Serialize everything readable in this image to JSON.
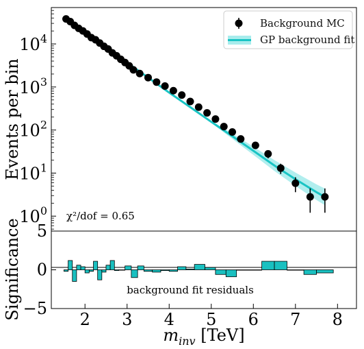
{
  "chart_data": [
    {
      "type": "scatter",
      "panel": "main",
      "ylabel": "Events per bin",
      "yscale": "log",
      "ylim": [
        0.45,
        70000
      ],
      "xlim": [
        1.2,
        8.45
      ],
      "ytick_labels": [
        "10^0",
        "10^1",
        "10^2",
        "10^3",
        "10^4"
      ],
      "annotation": "χ²/dof = 0.65",
      "legend": {
        "position": "top-right",
        "entries": [
          "Background MC",
          "GP background fit"
        ]
      },
      "colors": {
        "data": "#000000",
        "fit": "#19c4c4",
        "fit_band": "#a8ecec"
      },
      "series": [
        {
          "name": "Background MC",
          "x": [
            1.55,
            1.65,
            1.75,
            1.85,
            1.95,
            2.05,
            2.15,
            2.25,
            2.35,
            2.45,
            2.55,
            2.65,
            2.75,
            2.85,
            2.95,
            3.05,
            3.15,
            3.3,
            3.5,
            3.7,
            3.9,
            4.1,
            4.3,
            4.5,
            4.7,
            4.9,
            5.1,
            5.3,
            5.5,
            5.7,
            6.05,
            6.35,
            6.65,
            7.0,
            7.35,
            7.7
          ],
          "y": [
            38000,
            33000,
            27000,
            23000,
            20000,
            17000,
            14000,
            12500,
            10500,
            8800,
            7600,
            6200,
            5300,
            4400,
            3700,
            3100,
            2500,
            2050,
            1650,
            1300,
            1050,
            820,
            650,
            460,
            340,
            250,
            180,
            120,
            90,
            62,
            44,
            28,
            13,
            5.8,
            2.8,
            2.8
          ],
          "yerr": [
            500,
            450,
            400,
            350,
            300,
            280,
            250,
            220,
            200,
            180,
            160,
            140,
            120,
            110,
            100,
            90,
            80,
            70,
            60,
            50,
            45,
            40,
            35,
            30,
            25,
            20,
            18,
            15,
            12,
            10,
            8,
            6,
            3.5,
            2.2,
            1.6,
            1.6
          ]
        },
        {
          "name": "GP background fit",
          "x": [
            1.55,
            2.0,
            2.5,
            3.0,
            3.5,
            4.0,
            4.5,
            5.0,
            5.5,
            6.0,
            6.5,
            7.0,
            7.5,
            7.7
          ],
          "y": [
            38000,
            18500,
            8200,
            3700,
            1650,
            740,
            340,
            155,
            72,
            33,
            15,
            7.2,
            3.6,
            2.8
          ]
        }
      ]
    },
    {
      "type": "bar",
      "panel": "residuals",
      "ylabel": "Significance",
      "xlabel": "m_inv [TeV]",
      "xlim": [
        1.2,
        8.45
      ],
      "ylim": [
        -5,
        5
      ],
      "yticks": [
        -5,
        0,
        5
      ],
      "xticks": [
        2,
        3,
        4,
        5,
        6,
        7,
        8
      ],
      "annotation": "background fit residuals",
      "bar_color": "#1ac0c0",
      "edges": [
        1.5,
        1.6,
        1.7,
        1.8,
        1.9,
        2.0,
        2.1,
        2.2,
        2.3,
        2.4,
        2.5,
        2.6,
        2.7,
        2.8,
        2.95,
        3.1,
        3.25,
        3.4,
        3.6,
        3.8,
        4.0,
        4.2,
        4.4,
        4.6,
        4.85,
        5.1,
        5.35,
        5.6,
        6.2,
        6.5,
        6.8,
        7.2,
        7.5,
        7.9
      ],
      "values": [
        -0.2,
        1.2,
        -1.5,
        0.6,
        0.4,
        -0.4,
        -0.2,
        1.1,
        -1.3,
        -0.3,
        0.6,
        1.2,
        -0.1,
        0.0,
        0.5,
        -1.0,
        0.5,
        -0.2,
        -0.3,
        -0.1,
        -0.2,
        0.4,
        0.1,
        0.7,
        0.3,
        -0.6,
        -0.9,
        0.0,
        1.1,
        1.1,
        0.0,
        -0.6,
        -0.4
      ]
    }
  ]
}
